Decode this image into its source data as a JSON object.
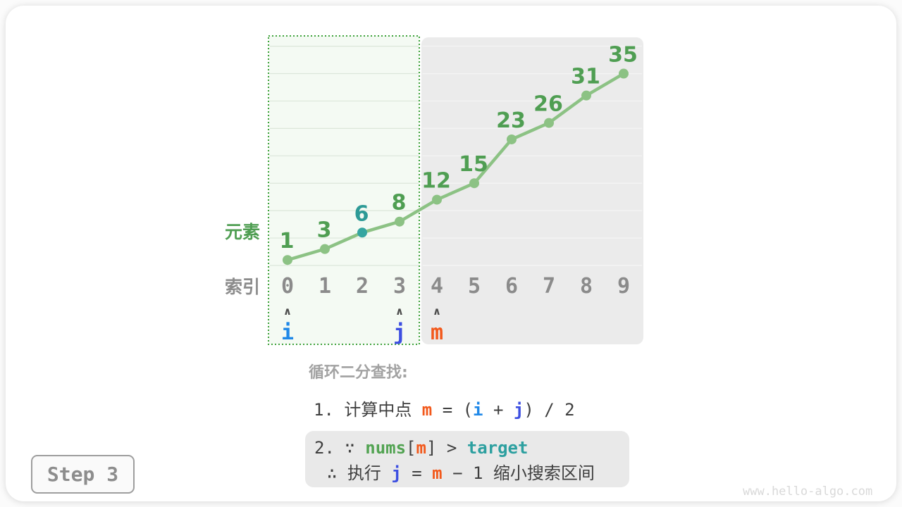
{
  "card": {
    "step_label": "Step 3",
    "watermark": "www.hello-algo.com"
  },
  "chart_data": {
    "type": "line",
    "title": "",
    "xlabel": "索引",
    "ylabel": "元素",
    "categories": [
      0,
      1,
      2,
      3,
      4,
      5,
      6,
      7,
      8,
      9
    ],
    "values": [
      1,
      3,
      6,
      8,
      12,
      15,
      23,
      26,
      31,
      35
    ],
    "ylim": [
      0,
      40
    ],
    "gridline_step": 5,
    "grid": true,
    "legend": false,
    "highlight_index": 2,
    "search_range": [
      0,
      3
    ],
    "excluded_range": [
      4,
      9
    ],
    "pointers": [
      {
        "name": "i",
        "index": 0,
        "color": "#1f88e8"
      },
      {
        "name": "j",
        "index": 3,
        "color": "#3d4fe1"
      },
      {
        "name": "m",
        "index": 4,
        "color": "#f2591c"
      }
    ],
    "arrow_glyph": "∧",
    "colors": {
      "line": "#8cc284",
      "point": "#8cc284",
      "highlight_point": "#35a5a0",
      "value_label": "#4f9e52",
      "highlight_value_label": "#2d9a96",
      "index_label": "#8b8b8b",
      "ylabel_color": "#4f9e52",
      "xlabel_color": "#8c8c8c",
      "search_region_fill": "#f4faf3",
      "search_region_border": "#3ea23a",
      "excluded_region_fill": "#ebebeb",
      "grid_on_search": "#dce6da",
      "grid_on_excluded": "#f4f4f4",
      "arrow": "#4d4d4d"
    }
  },
  "caption": {
    "heading": "循环二分查找:",
    "line1": [
      {
        "t": "1. 计算中点 ",
        "c": "plain"
      },
      {
        "t": "m",
        "c": "m"
      },
      {
        "t": " = (",
        "c": "plain"
      },
      {
        "t": "i",
        "c": "i"
      },
      {
        "t": " + ",
        "c": "plain"
      },
      {
        "t": "j",
        "c": "j"
      },
      {
        "t": ") / 2",
        "c": "plain"
      }
    ],
    "line2a": [
      {
        "t": "2. ∵ ",
        "c": "plain"
      },
      {
        "t": "nums",
        "c": "nums"
      },
      {
        "t": "[",
        "c": "plain"
      },
      {
        "t": "m",
        "c": "m"
      },
      {
        "t": "] > ",
        "c": "plain"
      },
      {
        "t": "target",
        "c": "target"
      }
    ],
    "line2b": [
      {
        "t": "∴ 执行 ",
        "c": "plain"
      },
      {
        "t": "j",
        "c": "j"
      },
      {
        "t": " = ",
        "c": "plain"
      },
      {
        "t": "m",
        "c": "m"
      },
      {
        "t": " − 1 缩小搜索区间",
        "c": "plain"
      }
    ]
  }
}
